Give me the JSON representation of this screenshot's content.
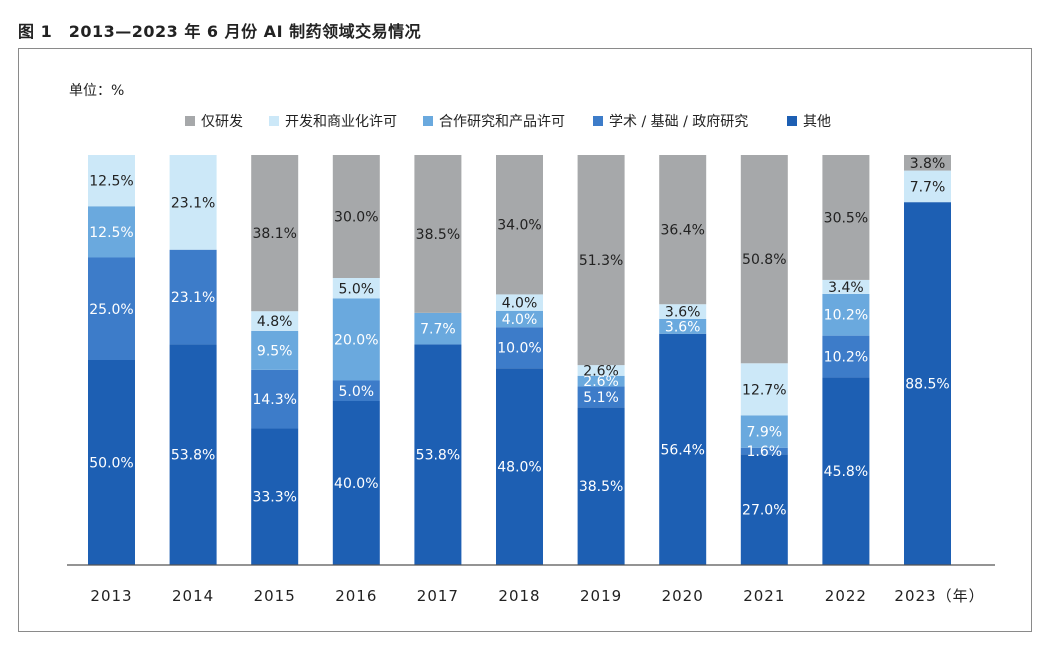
{
  "figure": {
    "title": "图 1　2013—2023 年 6 月份 AI 制药领域交易情况"
  },
  "colors": {
    "仅研发": "#a6a8aa",
    "开发和商业化许可": "#cce8f8",
    "合作研究和产品许可": "#6aa9de",
    "学术/基础/政府研究": "#3d7cc9",
    "其他": "#1d5fb3"
  },
  "chart_data": {
    "type": "bar",
    "stacked": true,
    "unit_label": "单位：%",
    "ylim": [
      0,
      100
    ],
    "grid": false,
    "legend_position": "top",
    "categories": [
      "2013",
      "2014",
      "2015",
      "2016",
      "2017",
      "2018",
      "2019",
      "2020",
      "2021",
      "2022",
      "2023（年）"
    ],
    "series": [
      {
        "name": "其他",
        "values": [
          50.0,
          53.8,
          33.3,
          40.0,
          53.8,
          48.0,
          38.5,
          56.4,
          27.0,
          45.8,
          88.5
        ],
        "labels": [
          "50.0%",
          "53.8%",
          "33.3%",
          "40.0%",
          "53.8%",
          "48.0%",
          "38.5%",
          "56.4%",
          "27.0%",
          "45.8%",
          "88.5%"
        ]
      },
      {
        "name": "学术 / 基础 / 政府研究",
        "values": [
          25.0,
          23.1,
          14.3,
          5.0,
          0,
          10.0,
          5.1,
          0,
          1.6,
          10.2,
          0
        ],
        "labels": [
          "25.0%",
          "23.1%",
          "14.3%",
          "5.0%",
          "",
          "10.0%",
          "5.1%",
          "",
          "1.6%",
          "10.2%",
          ""
        ]
      },
      {
        "name": "合作研究和产品许可",
        "values": [
          12.5,
          0,
          9.5,
          20.0,
          7.7,
          4.0,
          2.6,
          3.6,
          7.9,
          10.2,
          0
        ],
        "labels": [
          "12.5%",
          "",
          "9.5%",
          "20.0%",
          "7.7%",
          "4.0%",
          "2.6%",
          "3.6%",
          "7.9%",
          "10.2%",
          ""
        ]
      },
      {
        "name": "开发和商业化许可",
        "values": [
          12.5,
          23.1,
          4.8,
          5.0,
          0,
          4.0,
          2.6,
          3.6,
          12.7,
          3.4,
          7.7
        ],
        "labels": [
          "12.5%",
          "23.1%",
          "4.8%",
          "5.0%",
          "",
          "4.0%",
          "2.6%",
          "3.6%",
          "12.7%",
          "3.4%",
          "7.7%"
        ]
      },
      {
        "name": "仅研发",
        "values": [
          0,
          0,
          38.1,
          30.0,
          38.5,
          34.0,
          51.3,
          36.4,
          50.8,
          30.5,
          3.8
        ],
        "labels": [
          "",
          "",
          "38.1%",
          "30.0%",
          "38.5%",
          "34.0%",
          "51.3%",
          "36.4%",
          "50.8%",
          "30.5%",
          "3.8%"
        ]
      }
    ],
    "legend_order": [
      "仅研发",
      "开发和商业化许可",
      "合作研究和产品许可",
      "学术 / 基础 / 政府研究",
      "其他"
    ]
  }
}
